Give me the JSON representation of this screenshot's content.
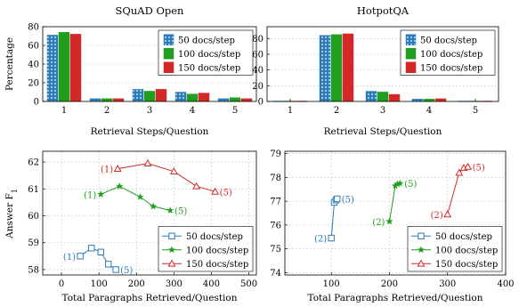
{
  "colors": {
    "s50": "#2b7bba",
    "s100": "#1f9e1f",
    "s150": "#d62728"
  },
  "chart_data": [
    {
      "type": "bar",
      "title": "SQuAD Open",
      "xlabel": "Retrieval Steps/Question",
      "ylabel": "Percentage",
      "categories": [
        "1",
        "2",
        "3",
        "4",
        "5"
      ],
      "ylim": [
        0,
        80
      ],
      "yticks": [
        "0",
        "20",
        "40",
        "60",
        "80"
      ],
      "grid": true,
      "legend_position": "top-right",
      "series": [
        {
          "name": "50 docs/step",
          "values": [
            71,
            3,
            13,
            10,
            3
          ]
        },
        {
          "name": "100 docs/step",
          "values": [
            74,
            3,
            11,
            8,
            4
          ]
        },
        {
          "name": "150 docs/step",
          "values": [
            72,
            3,
            13,
            9,
            3
          ]
        }
      ]
    },
    {
      "type": "bar",
      "title": "HotpotQA",
      "xlabel": "Retrieval Steps/Question",
      "ylabel": "",
      "categories": [
        "1",
        "2",
        "3",
        "4",
        "5"
      ],
      "ylim": [
        0,
        95
      ],
      "yticks": [
        "0",
        "20",
        "40",
        "60",
        "80"
      ],
      "grid": true,
      "legend_position": "top-right",
      "series": [
        {
          "name": "50 docs/step",
          "values": [
            0.5,
            84,
            13,
            3,
            0.5
          ]
        },
        {
          "name": "100 docs/step",
          "values": [
            0.5,
            85,
            12,
            3,
            0.5
          ]
        },
        {
          "name": "150 docs/step",
          "values": [
            0.5,
            86,
            9,
            3.5,
            0.5
          ]
        }
      ]
    },
    {
      "type": "line",
      "title": "",
      "xlabel": "Total Paragraphs Retrieved/Question",
      "ylabel": "Answer F",
      "ylabel_subscript": "1",
      "xlim": [
        -50,
        520
      ],
      "ylim": [
        57.8,
        62.4
      ],
      "xticks": [
        "0",
        "100",
        "200",
        "300",
        "400",
        "500"
      ],
      "yticks": [
        "58",
        "59",
        "60",
        "61",
        "62"
      ],
      "grid": true,
      "legend_position": "bottom-right",
      "series": [
        {
          "name": "50 docs/step",
          "start_label": "(1)",
          "end_label": "(5)",
          "x": [
            50,
            80,
            105,
            125,
            145
          ],
          "y": [
            58.5,
            58.8,
            58.65,
            58.2,
            58.0
          ]
        },
        {
          "name": "100 docs/step",
          "start_label": "(1)",
          "end_label": "(5)",
          "x": [
            105,
            155,
            210,
            245,
            290
          ],
          "y": [
            60.8,
            61.1,
            60.7,
            60.35,
            60.2
          ]
        },
        {
          "name": "150 docs/step",
          "start_label": "(1)",
          "end_label": "(5)",
          "x": [
            150,
            230,
            300,
            360,
            410
          ],
          "y": [
            61.75,
            61.95,
            61.65,
            61.1,
            60.9
          ]
        }
      ]
    },
    {
      "type": "line",
      "title": "",
      "xlabel": "Total Paragraphs Retrieved/Question",
      "ylabel": "",
      "xlim": [
        20,
        400
      ],
      "ylim": [
        73.9,
        79.1
      ],
      "xticks": [
        "100",
        "200",
        "300",
        "400"
      ],
      "yticks": [
        "74",
        "75",
        "76",
        "77",
        "78",
        "79"
      ],
      "grid": true,
      "legend_position": "bottom-right",
      "series": [
        {
          "name": "50 docs/step",
          "start_label": "(2)",
          "end_label": "(5)",
          "x": [
            100,
            105,
            108,
            110
          ],
          "y": [
            75.45,
            76.95,
            77.05,
            77.1
          ]
        },
        {
          "name": "100 docs/step",
          "start_label": "(2)",
          "end_label": "(5)",
          "x": [
            200,
            210,
            214,
            218
          ],
          "y": [
            76.15,
            77.65,
            77.72,
            77.75
          ]
        },
        {
          "name": "150 docs/step",
          "start_label": "(2)",
          "end_label": "(5)",
          "x": [
            300,
            320,
            328,
            335
          ],
          "y": [
            76.45,
            78.2,
            78.4,
            78.45
          ]
        }
      ]
    }
  ]
}
